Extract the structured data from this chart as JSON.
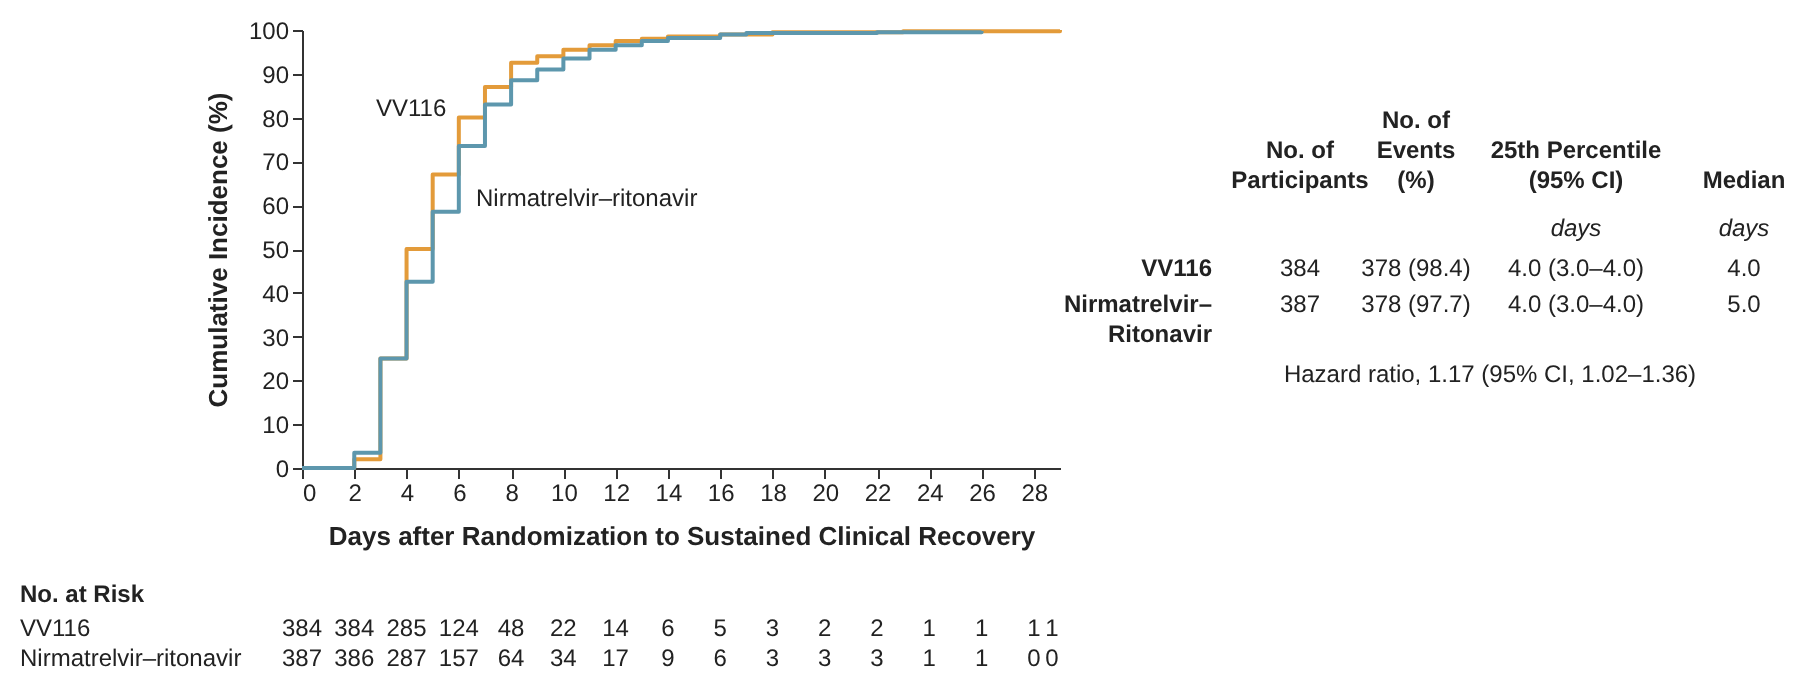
{
  "chart_data": {
    "type": "step",
    "xlabel": "Days after Randomization to Sustained Clinical Recovery",
    "ylabel": "Cumulative Incidence (%)",
    "xlim": [
      0,
      29
    ],
    "xticks": [
      0,
      2,
      4,
      6,
      8,
      10,
      12,
      14,
      16,
      18,
      20,
      22,
      24,
      26,
      28
    ],
    "ylim": [
      0,
      100
    ],
    "yticks": [
      0,
      10,
      20,
      30,
      40,
      50,
      60,
      70,
      80,
      90,
      100
    ],
    "grid": false,
    "line_style": "solid",
    "series": [
      {
        "name": "VV116",
        "color": "#e39b3a",
        "x": [
          0,
          2,
          3,
          4,
          5,
          6,
          7,
          8,
          9,
          10,
          11,
          12,
          13,
          14,
          16,
          18,
          23,
          29
        ],
        "values": [
          0,
          2,
          25,
          50,
          67,
          80,
          87,
          92.5,
          94,
          95.5,
          96.5,
          97.5,
          98,
          98.5,
          99,
          99.5,
          99.7,
          100
        ]
      },
      {
        "name": "Nirmatrelvir–ritonavir",
        "color": "#5d97ad",
        "x": [
          0,
          2,
          3,
          4,
          5,
          6,
          7,
          8,
          9,
          10,
          11,
          12,
          13,
          14,
          16,
          17,
          22,
          26
        ],
        "values": [
          0,
          3.5,
          25,
          42.5,
          58.5,
          73.5,
          83,
          88.5,
          91,
          93.5,
          95.5,
          96.5,
          97.5,
          98.2,
          99,
          99.3,
          99.5,
          99.8
        ]
      }
    ],
    "annotations": [
      "No. of\nParticipants",
      "No. of\nEvents\n(%)",
      "25th Percentile\n(95% CI)",
      "Median",
      "days",
      "days",
      "VV116",
      "384",
      "378 (98.4)",
      "4.0 (3.0–4.0)",
      "4.0",
      "Nirmatrelvir–\nRitonavir",
      "387",
      "378 (97.7)",
      "4.0 (3.0–4.0)",
      "5.0",
      "Hazard ratio, 1.17 (95% CI, 1.02–1.36)",
      "No. at Risk",
      "VV116",
      "384 384 285 124 48 22 14 6 5 3 2 2 1 1 1 1",
      "Nirmatrelvir–ritonavir",
      "387 386 287 157 64 34 17 9 6 3 3 3 1 1 0 0"
    ]
  }
}
